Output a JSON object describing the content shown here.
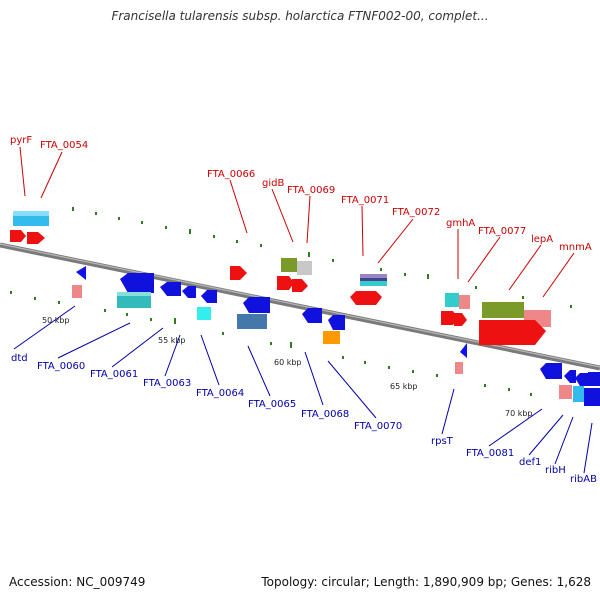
{
  "title": "Francisella tularensis subsp. holarctica FTNF002-00, complet...",
  "footer": {
    "accession": "Accession: NC_009749",
    "topology": "Topology: circular; Length: 1,890,909 bp; Genes: 1,628"
  },
  "colors": {
    "top_label": "#cc0000",
    "bottom_label": "#0000aa",
    "backbone": "#888888",
    "tick": "#2e7d1e"
  },
  "scale_ticks": [
    "50 kbp",
    "55 kbp",
    "60 kbp",
    "65 kbp",
    "70 kbp"
  ],
  "top_labels": [
    "pyrF",
    "FTA_0054",
    "FTA_0066",
    "gidB",
    "FTA_0069",
    "FTA_0071",
    "FTA_0072",
    "gmhA",
    "FTA_0077",
    "lepA",
    "mnmA"
  ],
  "bottom_labels": [
    "dtd",
    "FTA_0060",
    "FTA_0061",
    "FTA_0063",
    "FTA_0064",
    "FTA_0065",
    "FTA_0068",
    "FTA_0070",
    "rpsT",
    "FTA_0081",
    "def1",
    "ribH",
    "ribAB"
  ]
}
